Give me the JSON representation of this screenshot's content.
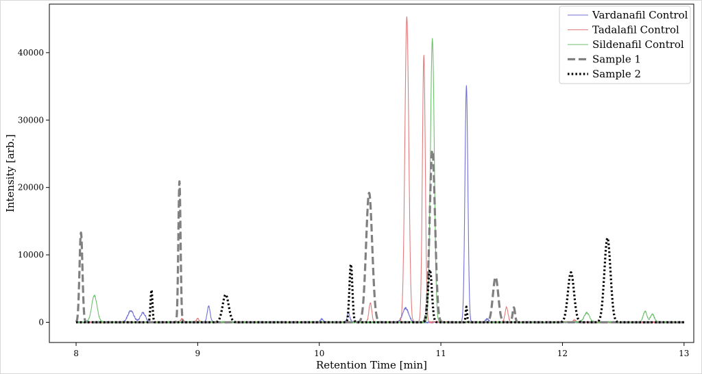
{
  "chart_data": {
    "type": "line",
    "title": "",
    "xlabel": "Retention Time [min]",
    "ylabel": "Intensity [arb.]",
    "xlim": [
      7.78,
      13.08
    ],
    "ylim": [
      -3000,
      47200
    ],
    "xticks": [
      8,
      9,
      10,
      11,
      12,
      13
    ],
    "yticks": [
      0,
      10000,
      20000,
      30000,
      40000
    ],
    "legend_position": "top-right",
    "grid": false,
    "series": [
      {
        "name": "Vardanafil Control",
        "color": "#6f6fd6",
        "style": "solid",
        "peaks": [
          {
            "x": 8.45,
            "height": 1700,
            "width": 0.025
          },
          {
            "x": 8.55,
            "height": 1400,
            "width": 0.022
          },
          {
            "x": 9.09,
            "height": 2400,
            "width": 0.012
          },
          {
            "x": 10.02,
            "height": 500,
            "width": 0.01
          },
          {
            "x": 10.24,
            "height": 1300,
            "width": 0.012
          },
          {
            "x": 10.71,
            "height": 2100,
            "width": 0.025
          },
          {
            "x": 11.21,
            "height": 35000,
            "width": 0.012
          },
          {
            "x": 11.38,
            "height": 500,
            "width": 0.012
          }
        ]
      },
      {
        "name": "Tadalafil Control",
        "color": "#e07a7a",
        "style": "solid",
        "peaks": [
          {
            "x": 8.87,
            "height": 600,
            "width": 0.01
          },
          {
            "x": 9.0,
            "height": 500,
            "width": 0.01
          },
          {
            "x": 10.42,
            "height": 2800,
            "width": 0.012
          },
          {
            "x": 10.72,
            "height": 45300,
            "width": 0.016
          },
          {
            "x": 10.86,
            "height": 39500,
            "width": 0.012
          },
          {
            "x": 11.54,
            "height": 2300,
            "width": 0.012
          },
          {
            "x": 12.1,
            "height": 400,
            "width": 0.01
          }
        ]
      },
      {
        "name": "Sildenafil Control",
        "color": "#6cbf6c",
        "style": "solid",
        "peaks": [
          {
            "x": 8.15,
            "height": 4000,
            "width": 0.022
          },
          {
            "x": 10.93,
            "height": 42000,
            "width": 0.016
          },
          {
            "x": 12.2,
            "height": 1400,
            "width": 0.022
          },
          {
            "x": 12.68,
            "height": 1600,
            "width": 0.016
          },
          {
            "x": 12.74,
            "height": 1200,
            "width": 0.016
          }
        ]
      },
      {
        "name": "Sample 1",
        "color": "#808080",
        "style": "dashed",
        "peaks": [
          {
            "x": 8.04,
            "height": 13300,
            "width": 0.012
          },
          {
            "x": 8.85,
            "height": 20900,
            "width": 0.009
          },
          {
            "x": 10.41,
            "height": 19200,
            "width": 0.025
          },
          {
            "x": 10.93,
            "height": 25500,
            "width": 0.022
          },
          {
            "x": 11.45,
            "height": 6700,
            "width": 0.022
          },
          {
            "x": 11.6,
            "height": 2200,
            "width": 0.01
          }
        ]
      },
      {
        "name": "Sample 2",
        "color": "#000000",
        "style": "dotted",
        "peaks": [
          {
            "x": 8.62,
            "height": 4800,
            "width": 0.008
          },
          {
            "x": 9.23,
            "height": 4100,
            "width": 0.025
          },
          {
            "x": 10.26,
            "height": 8600,
            "width": 0.012
          },
          {
            "x": 10.91,
            "height": 7800,
            "width": 0.016
          },
          {
            "x": 11.21,
            "height": 2300,
            "width": 0.006
          },
          {
            "x": 12.07,
            "height": 7400,
            "width": 0.025
          },
          {
            "x": 12.37,
            "height": 12500,
            "width": 0.025
          }
        ]
      }
    ]
  }
}
